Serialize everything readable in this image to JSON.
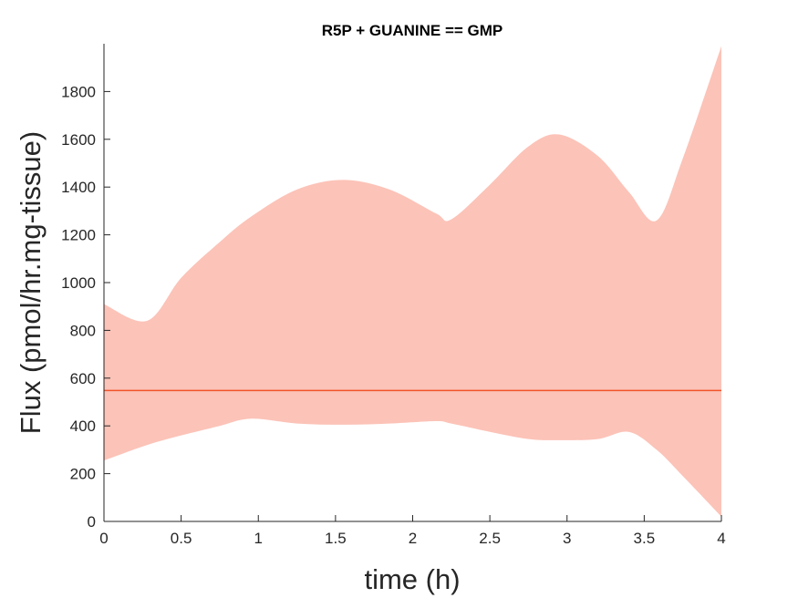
{
  "chart_data": {
    "type": "area",
    "title": "R5P + GUANINE == GMP",
    "xlabel": "time (h)",
    "ylabel": "Flux (pmol/hr.mg-tissue)",
    "xlim": [
      0,
      4
    ],
    "ylim": [
      0,
      2000
    ],
    "xticks": [
      0,
      0.5,
      1,
      1.5,
      2,
      2.5,
      3,
      3.5,
      4
    ],
    "xtick_labels": [
      "0",
      "0.5",
      "1",
      "1.5",
      "2",
      "2.5",
      "3",
      "3.5",
      "4"
    ],
    "yticks": [
      0,
      200,
      400,
      600,
      800,
      1000,
      1200,
      1400,
      1600,
      1800
    ],
    "ytick_labels": [
      "0",
      "200",
      "400",
      "600",
      "800",
      "1000",
      "1200",
      "1400",
      "1600",
      "1800"
    ],
    "grid": false,
    "colors": {
      "band": "#fcc3b8",
      "line": "#f0532b",
      "axis": "#262626"
    },
    "band": {
      "x": [
        0,
        0.28,
        0.5,
        0.75,
        0.95,
        1.25,
        1.55,
        1.85,
        2.15,
        2.25,
        2.5,
        2.75,
        2.95,
        3.2,
        3.4,
        3.58,
        3.75,
        4.0
      ],
      "upper": [
        910,
        840,
        1020,
        1170,
        1275,
        1390,
        1430,
        1390,
        1290,
        1265,
        1410,
        1570,
        1620,
        1530,
        1380,
        1260,
        1520,
        1990
      ],
      "lower": [
        255,
        320,
        360,
        400,
        430,
        410,
        405,
        410,
        420,
        410,
        375,
        345,
        340,
        345,
        375,
        300,
        190,
        20
      ]
    },
    "series": [
      {
        "x": [
          0,
          4
        ],
        "values": [
          548,
          548
        ]
      }
    ]
  }
}
